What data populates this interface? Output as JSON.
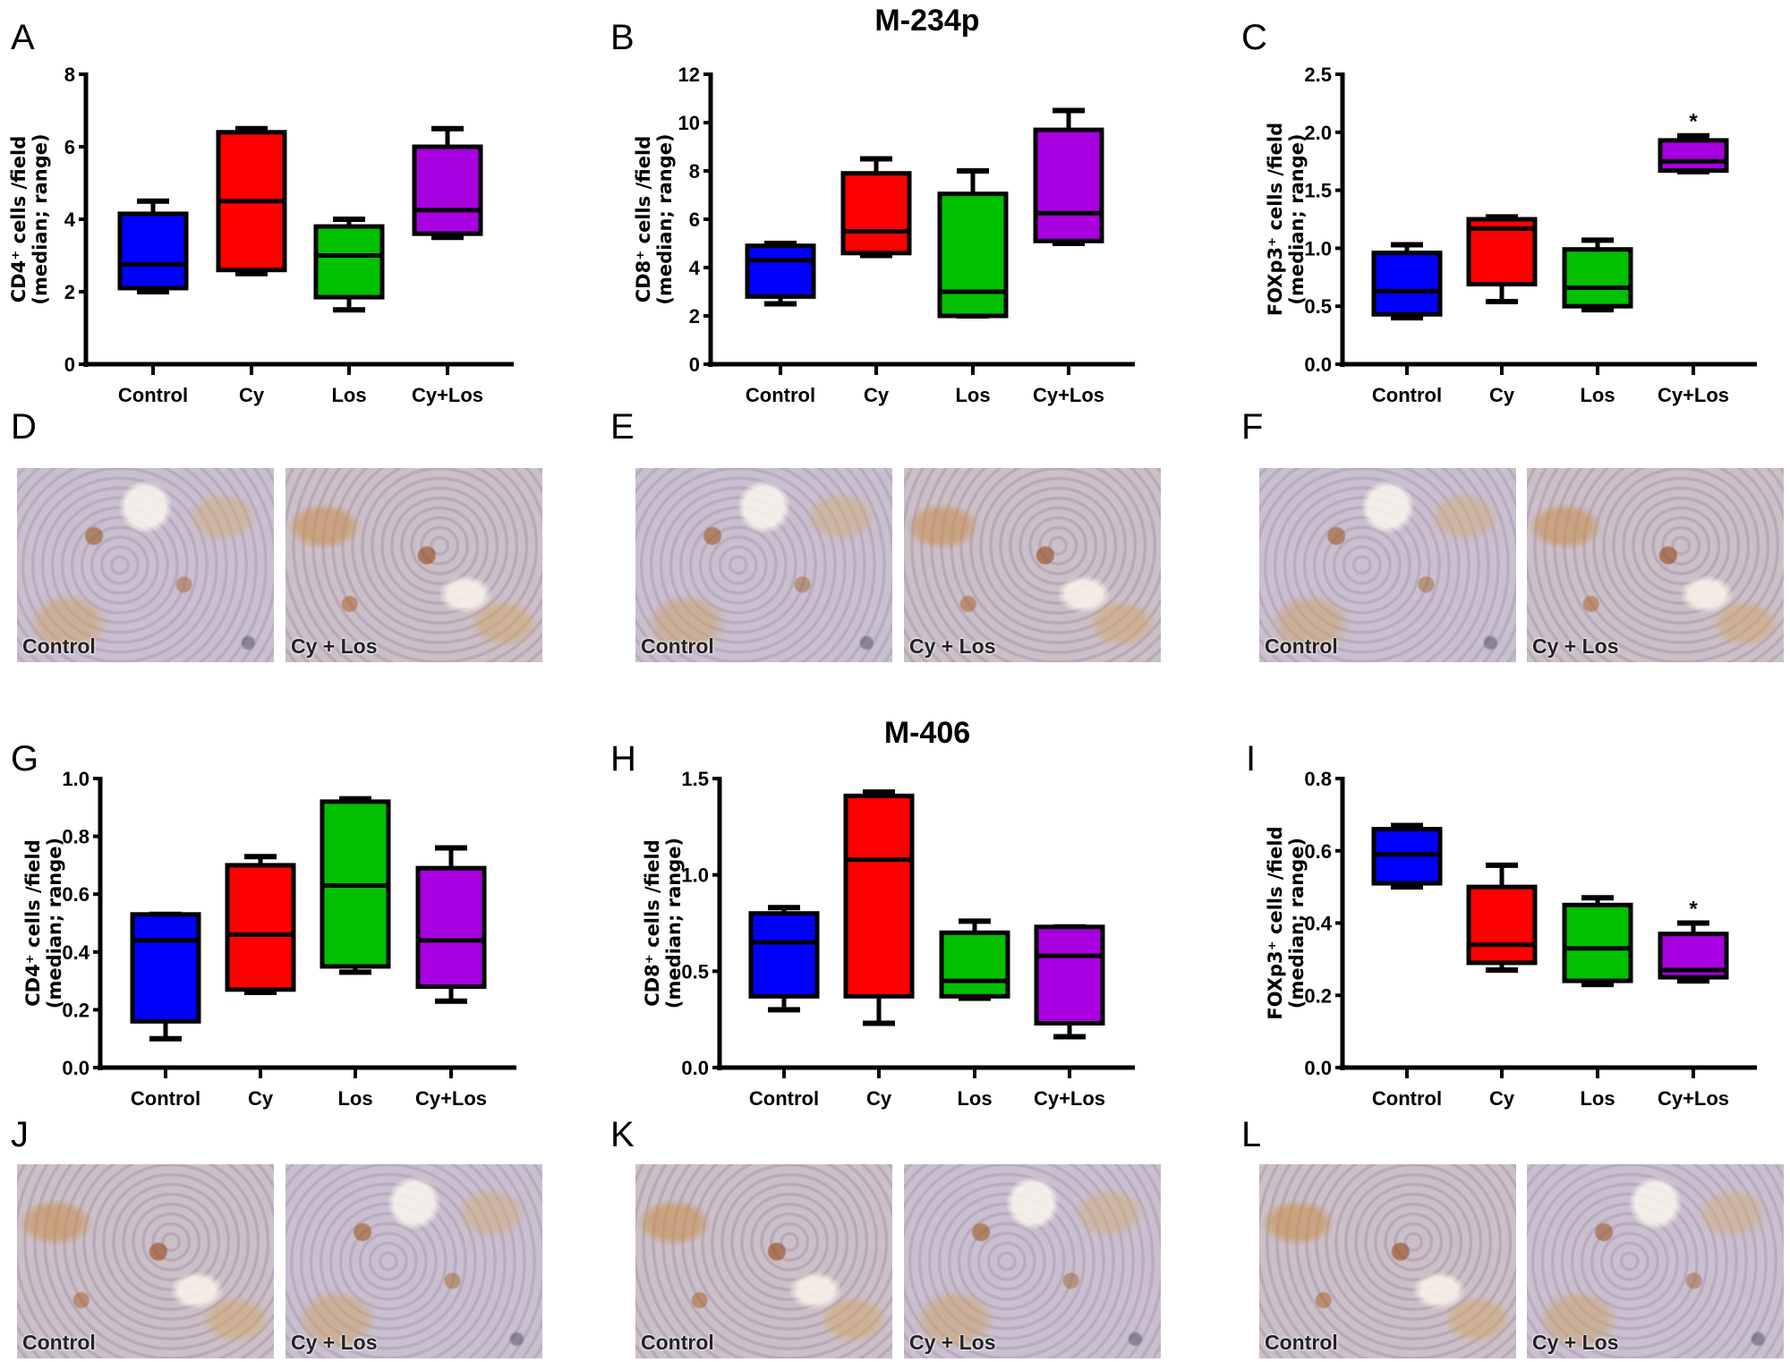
{
  "titles": {
    "top": "M-234p",
    "bottom": "M-406"
  },
  "panel_letters": {
    "A": "A",
    "B": "B",
    "C": "C",
    "D": "D",
    "E": "E",
    "F": "F",
    "G": "G",
    "H": "H",
    "I": "I",
    "J": "J",
    "K": "K",
    "L": "L"
  },
  "photo_captions": {
    "control": "Control",
    "treated": "Cy + Los"
  },
  "colors": {
    "Control": "#0000ff",
    "Cy": "#ff0000",
    "Los": "#00c000",
    "Cy+Los": "#a800e0"
  },
  "chart_data": [
    {
      "panel": "A",
      "type": "box",
      "categories": [
        "Control",
        "Cy",
        "Los",
        "Cy+Los"
      ],
      "ylabel_line1": "CD4⁺ cells /field",
      "ylabel_line2": "(median; range)",
      "ylim": [
        0,
        8
      ],
      "yticks": [
        "0",
        "2",
        "4",
        "6",
        "8"
      ],
      "ytick_values": [
        0,
        2,
        4,
        6,
        8
      ],
      "boxes": [
        {
          "min": 2.0,
          "q1": 2.1,
          "median": 2.75,
          "q3": 4.15,
          "max": 4.5
        },
        {
          "min": 2.5,
          "q1": 2.6,
          "median": 4.5,
          "q3": 6.4,
          "max": 6.5
        },
        {
          "min": 1.5,
          "q1": 1.85,
          "median": 3.0,
          "q3": 3.8,
          "max": 4.0
        },
        {
          "min": 3.5,
          "q1": 3.6,
          "median": 4.25,
          "q3": 6.0,
          "max": 6.5
        }
      ],
      "annotations": []
    },
    {
      "panel": "B",
      "type": "box",
      "categories": [
        "Control",
        "Cy",
        "Los",
        "Cy+Los"
      ],
      "ylabel_line1": "CD8⁺ cells /field",
      "ylabel_line2": "(median; range)",
      "ylim": [
        0,
        12
      ],
      "yticks": [
        "0",
        "2",
        "4",
        "6",
        "8",
        "10",
        "12"
      ],
      "ytick_values": [
        0,
        2,
        4,
        6,
        8,
        10,
        12
      ],
      "boxes": [
        {
          "min": 2.5,
          "q1": 2.8,
          "median": 4.3,
          "q3": 4.9,
          "max": 5.0
        },
        {
          "min": 4.5,
          "q1": 4.6,
          "median": 5.5,
          "q3": 7.9,
          "max": 8.5
        },
        {
          "min": 2.0,
          "q1": 2.0,
          "median": 3.0,
          "q3": 7.05,
          "max": 8.0
        },
        {
          "min": 5.0,
          "q1": 5.1,
          "median": 6.25,
          "q3": 9.7,
          "max": 10.5
        }
      ],
      "annotations": []
    },
    {
      "panel": "C",
      "type": "box",
      "categories": [
        "Control",
        "Cy",
        "Los",
        "Cy+Los"
      ],
      "ylabel_line1": "FOXp3⁺ cells /field",
      "ylabel_line2": "(median; range)",
      "ylim": [
        0,
        2.5
      ],
      "yticks": [
        "0.0",
        "0.5",
        "1.0",
        "1.5",
        "2.0",
        "2.5"
      ],
      "ytick_values": [
        0,
        0.5,
        1,
        1.5,
        2,
        2.5
      ],
      "boxes": [
        {
          "min": 0.4,
          "q1": 0.43,
          "median": 0.63,
          "q3": 0.96,
          "max": 1.03
        },
        {
          "min": 0.54,
          "q1": 0.69,
          "median": 1.17,
          "q3": 1.25,
          "max": 1.27
        },
        {
          "min": 0.47,
          "q1": 0.5,
          "median": 0.66,
          "q3": 0.99,
          "max": 1.07
        },
        {
          "min": 1.66,
          "q1": 1.67,
          "median": 1.75,
          "q3": 1.93,
          "max": 1.97
        }
      ],
      "annotations": [
        {
          "category": "Cy+Los",
          "text": "*"
        }
      ]
    },
    {
      "panel": "G",
      "type": "box",
      "categories": [
        "Control",
        "Cy",
        "Los",
        "Cy+Los"
      ],
      "ylabel_line1": "CD4⁺ cells /field",
      "ylabel_line2": "(median; range)",
      "ylim": [
        0,
        1.0
      ],
      "yticks": [
        "0.0",
        "0.2",
        "0.4",
        "0.6",
        "0.8",
        "1.0"
      ],
      "ytick_values": [
        0,
        0.2,
        0.4,
        0.6,
        0.8,
        1.0
      ],
      "boxes": [
        {
          "min": 0.1,
          "q1": 0.16,
          "median": 0.44,
          "q3": 0.53,
          "max": 0.53
        },
        {
          "min": 0.26,
          "q1": 0.27,
          "median": 0.46,
          "q3": 0.7,
          "max": 0.73
        },
        {
          "min": 0.33,
          "q1": 0.35,
          "median": 0.63,
          "q3": 0.92,
          "max": 0.93
        },
        {
          "min": 0.23,
          "q1": 0.28,
          "median": 0.44,
          "q3": 0.69,
          "max": 0.76
        }
      ],
      "annotations": []
    },
    {
      "panel": "H",
      "type": "box",
      "categories": [
        "Control",
        "Cy",
        "Los",
        "Cy+Los"
      ],
      "ylabel_line1": "CD8⁺ cells /field",
      "ylabel_line2": "(median; range)",
      "ylim": [
        0,
        1.5
      ],
      "yticks": [
        "0.0",
        "0.5",
        "1.0",
        "1.5"
      ],
      "ytick_values": [
        0,
        0.5,
        1.0,
        1.5
      ],
      "boxes": [
        {
          "min": 0.3,
          "q1": 0.37,
          "median": 0.65,
          "q3": 0.8,
          "max": 0.83
        },
        {
          "min": 0.23,
          "q1": 0.37,
          "median": 1.08,
          "q3": 1.41,
          "max": 1.43
        },
        {
          "min": 0.36,
          "q1": 0.37,
          "median": 0.45,
          "q3": 0.7,
          "max": 0.76
        },
        {
          "min": 0.16,
          "q1": 0.23,
          "median": 0.58,
          "q3": 0.73,
          "max": 0.73
        }
      ],
      "annotations": []
    },
    {
      "panel": "I",
      "type": "box",
      "categories": [
        "Control",
        "Cy",
        "Los",
        "Cy+Los"
      ],
      "ylabel_line1": "FOXp3⁺ cells /field",
      "ylabel_line2": "(median; range)",
      "ylim": [
        0,
        0.8
      ],
      "yticks": [
        "0.0",
        "0.2",
        "0.4",
        "0.6",
        "0.8"
      ],
      "ytick_values": [
        0,
        0.2,
        0.4,
        0.6,
        0.8
      ],
      "boxes": [
        {
          "min": 0.5,
          "q1": 0.51,
          "median": 0.59,
          "q3": 0.66,
          "max": 0.67
        },
        {
          "min": 0.27,
          "q1": 0.29,
          "median": 0.34,
          "q3": 0.5,
          "max": 0.56
        },
        {
          "min": 0.23,
          "q1": 0.24,
          "median": 0.33,
          "q3": 0.45,
          "max": 0.47
        },
        {
          "min": 0.24,
          "q1": 0.25,
          "median": 0.27,
          "q3": 0.37,
          "max": 0.4
        }
      ],
      "annotations": [
        {
          "category": "Cy+Los",
          "text": "*"
        }
      ]
    }
  ]
}
